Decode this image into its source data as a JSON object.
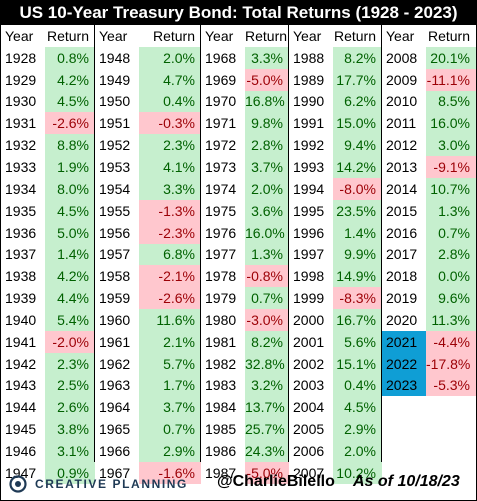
{
  "title": "US 10-Year Treasury Bond: Total Returns (1928 - 2023)",
  "chart_data": {
    "type": "table",
    "title": "US 10-Year Treasury Bond: Total Returns (1928 - 2023)",
    "columns": [
      "Year",
      "Return"
    ],
    "rows": [
      [
        "1928",
        "0.8%"
      ],
      [
        "1929",
        "4.2%"
      ],
      [
        "1930",
        "4.5%"
      ],
      [
        "1931",
        "-2.6%"
      ],
      [
        "1932",
        "8.8%"
      ],
      [
        "1933",
        "1.9%"
      ],
      [
        "1934",
        "8.0%"
      ],
      [
        "1935",
        "4.5%"
      ],
      [
        "1936",
        "5.0%"
      ],
      [
        "1937",
        "1.4%"
      ],
      [
        "1938",
        "4.2%"
      ],
      [
        "1939",
        "4.4%"
      ],
      [
        "1940",
        "5.4%"
      ],
      [
        "1941",
        "-2.0%"
      ],
      [
        "1942",
        "2.3%"
      ],
      [
        "1943",
        "2.5%"
      ],
      [
        "1944",
        "2.6%"
      ],
      [
        "1945",
        "3.8%"
      ],
      [
        "1946",
        "3.1%"
      ],
      [
        "1947",
        "0.9%"
      ],
      [
        "1948",
        "2.0%"
      ],
      [
        "1949",
        "4.7%"
      ],
      [
        "1950",
        "0.4%"
      ],
      [
        "1951",
        "-0.3%"
      ],
      [
        "1952",
        "2.3%"
      ],
      [
        "1953",
        "4.1%"
      ],
      [
        "1954",
        "3.3%"
      ],
      [
        "1955",
        "-1.3%"
      ],
      [
        "1956",
        "-2.3%"
      ],
      [
        "1957",
        "6.8%"
      ],
      [
        "1958",
        "-2.1%"
      ],
      [
        "1959",
        "-2.6%"
      ],
      [
        "1960",
        "11.6%"
      ],
      [
        "1961",
        "2.1%"
      ],
      [
        "1962",
        "5.7%"
      ],
      [
        "1963",
        "1.7%"
      ],
      [
        "1964",
        "3.7%"
      ],
      [
        "1965",
        "0.7%"
      ],
      [
        "1966",
        "2.9%"
      ],
      [
        "1967",
        "-1.6%"
      ],
      [
        "1968",
        "3.3%"
      ],
      [
        "1969",
        "-5.0%"
      ],
      [
        "1970",
        "16.8%"
      ],
      [
        "1971",
        "9.8%"
      ],
      [
        "1972",
        "2.8%"
      ],
      [
        "1973",
        "3.7%"
      ],
      [
        "1974",
        "2.0%"
      ],
      [
        "1975",
        "3.6%"
      ],
      [
        "1976",
        "16.0%"
      ],
      [
        "1977",
        "1.3%"
      ],
      [
        "1978",
        "-0.8%"
      ],
      [
        "1979",
        "0.7%"
      ],
      [
        "1980",
        "-3.0%"
      ],
      [
        "1981",
        "8.2%"
      ],
      [
        "1982",
        "32.8%"
      ],
      [
        "1983",
        "3.2%"
      ],
      [
        "1984",
        "13.7%"
      ],
      [
        "1985",
        "25.7%"
      ],
      [
        "1986",
        "24.3%"
      ],
      [
        "1987",
        "-5.0%"
      ],
      [
        "1988",
        "8.2%"
      ],
      [
        "1989",
        "17.7%"
      ],
      [
        "1990",
        "6.2%"
      ],
      [
        "1991",
        "15.0%"
      ],
      [
        "1992",
        "9.4%"
      ],
      [
        "1993",
        "14.2%"
      ],
      [
        "1994",
        "-8.0%"
      ],
      [
        "1995",
        "23.5%"
      ],
      [
        "1996",
        "1.4%"
      ],
      [
        "1997",
        "9.9%"
      ],
      [
        "1998",
        "14.9%"
      ],
      [
        "1999",
        "-8.3%"
      ],
      [
        "2000",
        "16.7%"
      ],
      [
        "2001",
        "5.6%"
      ],
      [
        "2002",
        "15.1%"
      ],
      [
        "2003",
        "0.4%"
      ],
      [
        "2004",
        "4.5%"
      ],
      [
        "2005",
        "2.9%"
      ],
      [
        "2006",
        "2.0%"
      ],
      [
        "2007",
        "10.2%"
      ],
      [
        "2008",
        "20.1%"
      ],
      [
        "2009",
        "-11.1%"
      ],
      [
        "2010",
        "8.5%"
      ],
      [
        "2011",
        "16.0%"
      ],
      [
        "2012",
        "3.0%"
      ],
      [
        "2013",
        "-9.1%"
      ],
      [
        "2014",
        "10.7%"
      ],
      [
        "2015",
        "1.3%"
      ],
      [
        "2016",
        "0.7%"
      ],
      [
        "2017",
        "2.8%"
      ],
      [
        "2018",
        "0.0%"
      ],
      [
        "2019",
        "9.6%"
      ],
      [
        "2020",
        "11.3%"
      ],
      [
        "2021",
        "-4.4%"
      ],
      [
        "2022",
        "-17.8%"
      ],
      [
        "2023",
        "-5.3%"
      ]
    ],
    "highlighted_years": [
      "2021",
      "2022",
      "2023"
    ],
    "colors": {
      "positive_bg": "#c6efce",
      "positive_text": "#006100",
      "negative_bg": "#ffc7ce",
      "negative_text": "#9c0006",
      "highlight_bg": "#0f9ed5",
      "title_bg": "#000000",
      "title_text": "#ffffff"
    }
  },
  "footer": {
    "logo_text": "CREATIVE PLANNING",
    "logo_icon": "creative-planning-logo-icon",
    "handle": "@CharlieBilello",
    "as_of": "As of 10/18/23"
  }
}
